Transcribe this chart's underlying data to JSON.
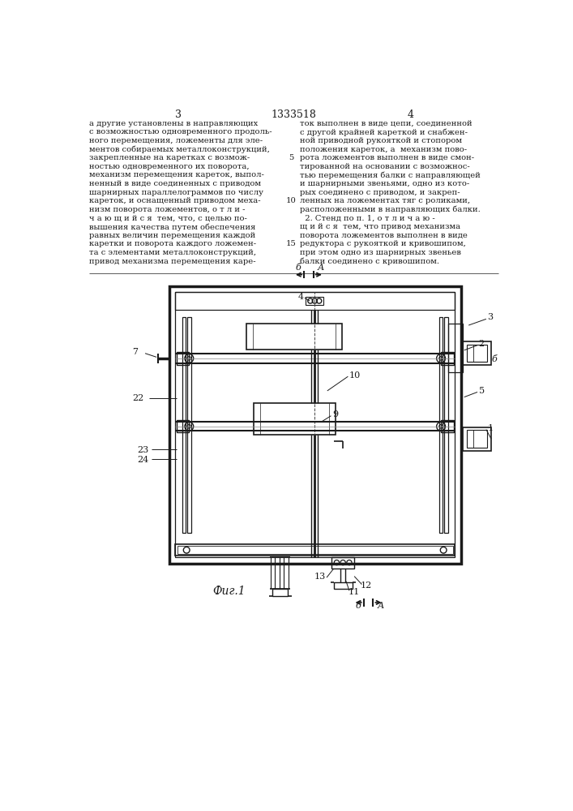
{
  "title": "1333518",
  "page_left": "3",
  "page_right": "4",
  "fig_label": "Фиг.1",
  "bg_color": "#ffffff",
  "line_color": "#1a1a1a",
  "text_color": "#1a1a1a",
  "text_left": [
    "а другие установлены в направляющих",
    "с возможностью одновременного продоль-",
    "ного перемещения, ложементы для эле-",
    "ментов собираемых металлоконструкций,",
    "закрепленные на каретках с возмож-",
    "ностью одновременного их поворота,",
    "механизм перемещения кареток, выпол-",
    "ненный в виде соединенных с приводом",
    "шарнирных параллелограммов по числу",
    "кареток, и оснащенный приводом меха-",
    "низм поворота ложементов, о т л и -",
    "ч а ю щ и й с я  тем, что, с целью по-",
    "вышения качества путем обеспечения",
    "равных величин перемещения каждой",
    "каретки и поворота каждого ложемен-",
    "та с элементами металлоконструкций,",
    "привод механизма перемещения каре-"
  ],
  "text_right": [
    "ток выполнен в виде цепи, соединенной",
    "с другой крайней кареткой и снабжен-",
    "ной приводной рукояткой и стопором",
    "положения кареток, а  механизм пово-",
    "рота ложементов выполнен в виде смон-",
    "тированной на основании с возможнос-",
    "тью перемещения балки с направляющей",
    "и шарнирными звеньями, одно из кото-",
    "рых соединено с приводом, и закреп-",
    "ленных на ложементах тяг с роликами,",
    "расположенными в направляющих балки.",
    "  2. Стенд по п. 1, о т л и ч а ю -",
    "щ и й с я  тем, что привод механизма",
    "поворота ложементов выполнен в виде",
    "редуктора с рукояткой и кривошипом,",
    "при этом одно из шарнирных звеньев",
    "балки соединено с кривошипом."
  ]
}
